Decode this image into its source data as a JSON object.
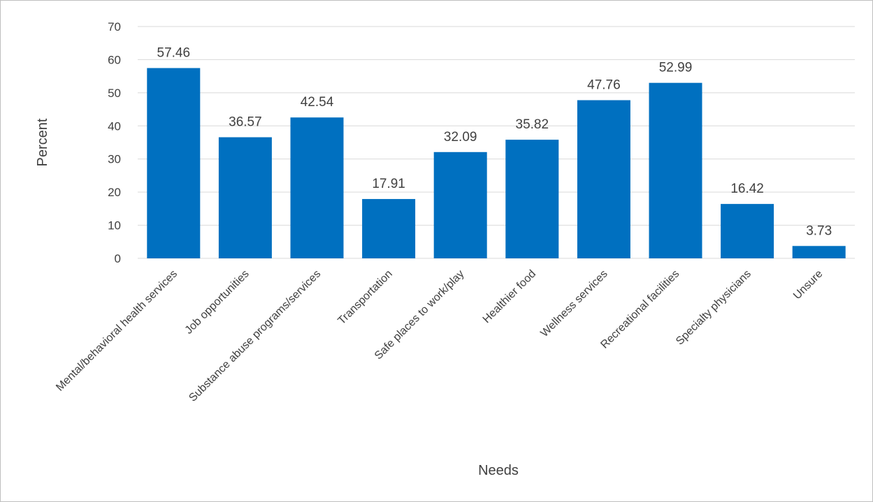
{
  "chart_data": {
    "type": "bar",
    "title": "",
    "xlabel": "Needs",
    "ylabel": "Percent",
    "ylim": [
      0,
      70
    ],
    "ytick_step": 10,
    "grid": true,
    "legend": "none",
    "bar_color": "#0070c0",
    "grid_color": "#d9d9d9",
    "categories": [
      "Mental/behavioral health services",
      "Job opportunities",
      "Substance abuse programs/services",
      "Transportation",
      "Safe places to work/play",
      "Healthier food",
      "Wellness services",
      "Recreational facilities",
      "Specialty physicians",
      "Unsure"
    ],
    "values": [
      57.46,
      36.57,
      42.54,
      17.91,
      32.09,
      35.82,
      47.76,
      52.99,
      16.42,
      3.73
    ],
    "data_labels": [
      "57.46",
      "36.57",
      "42.54",
      "17.91",
      "32.09",
      "35.82",
      "47.76",
      "52.99",
      "16.42",
      "3.73"
    ]
  }
}
